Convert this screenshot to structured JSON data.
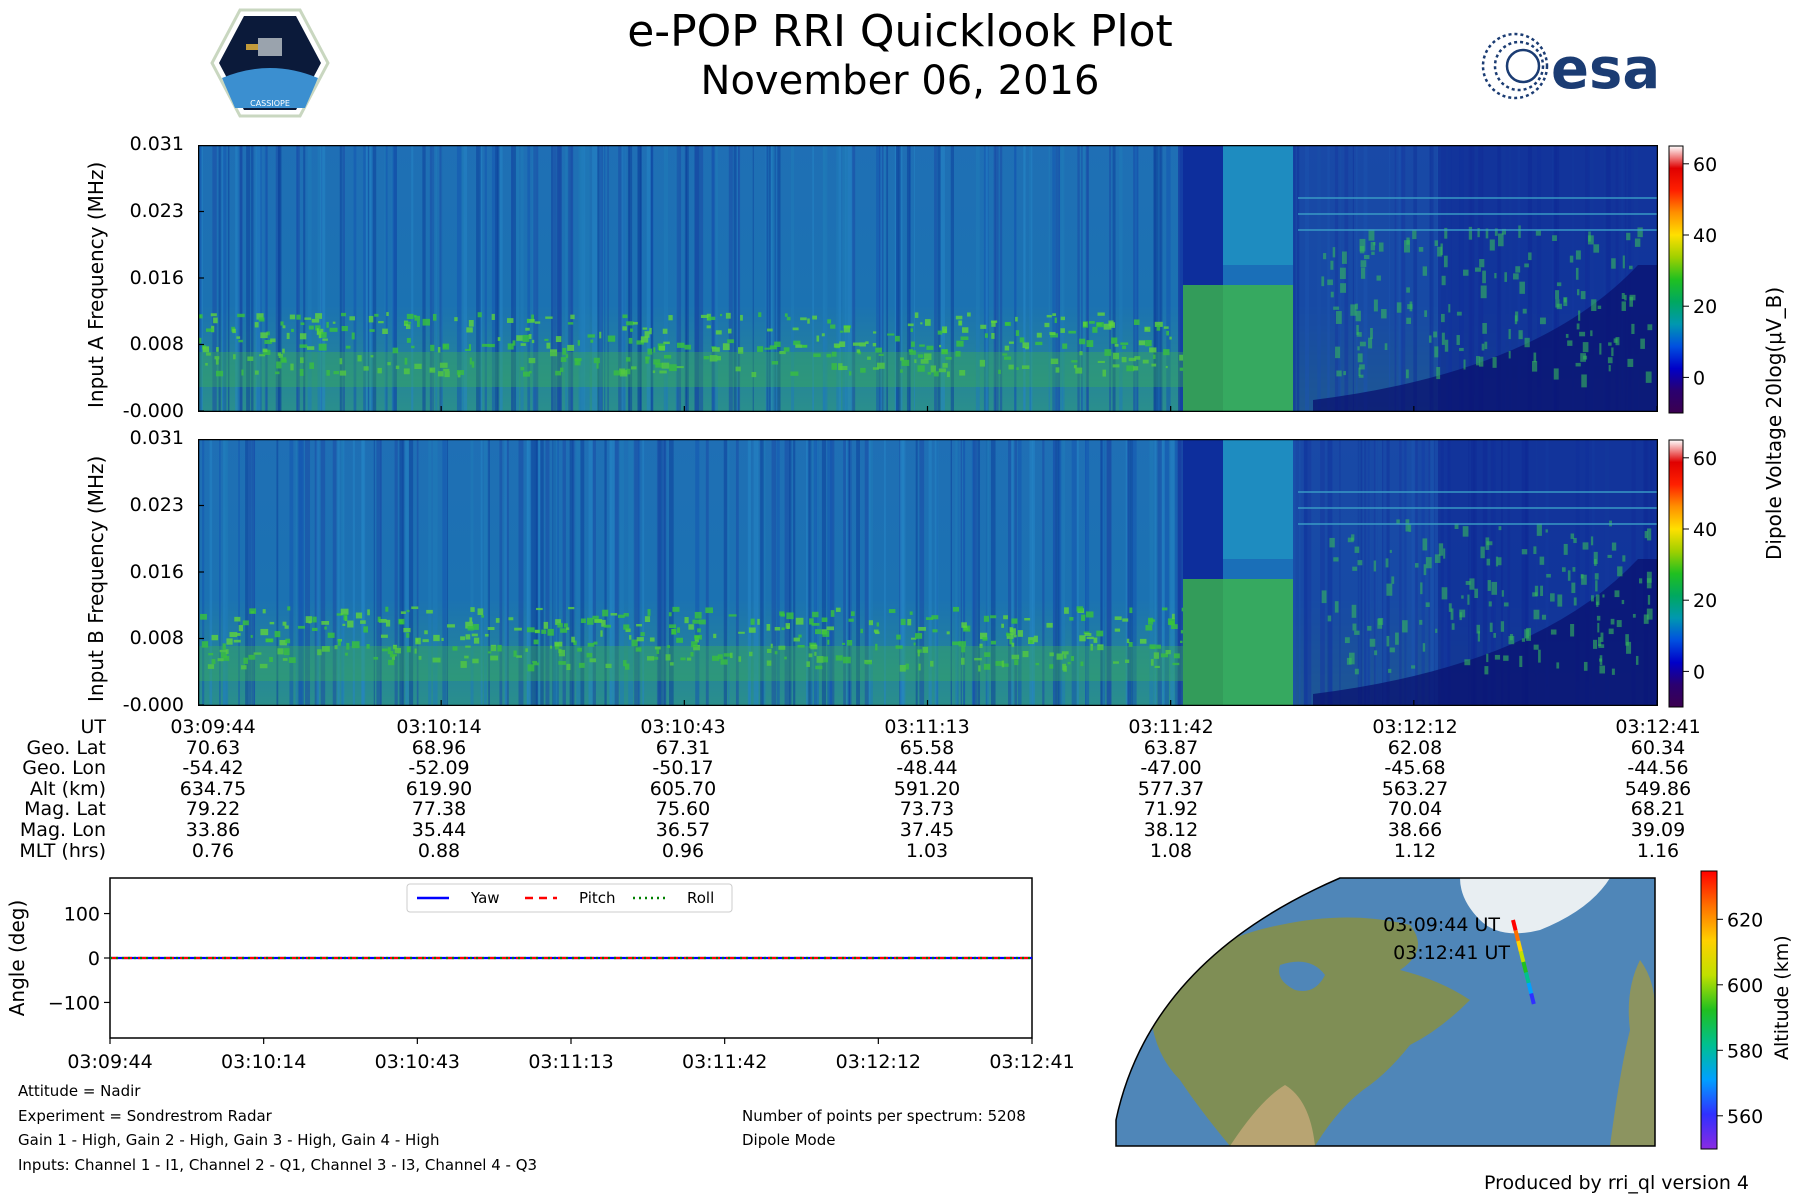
{
  "header": {
    "title": "e-POP RRI Quicklook Plot",
    "date": "November 06, 2016",
    "mission_logo_label": "CASSIOPE",
    "agency_logo_label": "esa"
  },
  "chart_data": [
    {
      "type": "heatmap",
      "name": "input-a-spectrogram",
      "ylabel": "Input A Frequency (MHz)",
      "y_ticks": [
        "0.031",
        "0.023",
        "0.016",
        "0.008",
        "-0.000"
      ],
      "ylim": [
        0.0,
        0.031
      ],
      "x_ticks": [
        "03:09:44",
        "03:10:14",
        "03:10:43",
        "03:11:13",
        "03:11:42",
        "03:12:12",
        "03:12:41"
      ],
      "colorbar": {
        "label": "Dipole Voltage 20log(μV_B)",
        "ticks": [
          "60",
          "40",
          "20",
          "0"
        ],
        "range": [
          -10,
          65
        ]
      }
    },
    {
      "type": "heatmap",
      "name": "input-b-spectrogram",
      "ylabel": "Input B Frequency (MHz)",
      "y_ticks": [
        "0.031",
        "0.023",
        "0.016",
        "0.008",
        "-0.000"
      ],
      "ylim": [
        0.0,
        0.031
      ],
      "x_ticks": [
        "03:09:44",
        "03:10:14",
        "03:10:43",
        "03:11:13",
        "03:11:42",
        "03:12:12",
        "03:12:41"
      ],
      "colorbar": {
        "label": "Dipole Voltage 20log(μV_B)",
        "ticks": [
          "60",
          "40",
          "20",
          "0"
        ],
        "range": [
          -10,
          65
        ]
      }
    },
    {
      "type": "line",
      "name": "attitude-plot",
      "ylabel": "Angle (deg)",
      "y_ticks": [
        "100",
        "0",
        "−100"
      ],
      "ylim": [
        -180,
        180
      ],
      "x_ticks": [
        "03:09:44",
        "03:10:14",
        "03:10:43",
        "03:11:13",
        "03:11:42",
        "03:12:12",
        "03:12:41"
      ],
      "series": [
        {
          "name": "Yaw",
          "color": "#0000ff",
          "values": [
            0,
            0,
            0,
            0,
            0,
            0,
            0
          ]
        },
        {
          "name": "Pitch",
          "color": "#ff0000",
          "values": [
            0,
            0,
            0,
            0,
            0,
            0,
            0
          ]
        },
        {
          "name": "Roll",
          "color": "#008000",
          "values": [
            0,
            0,
            0,
            0,
            0,
            0,
            0
          ]
        }
      ],
      "legend": "top-center"
    },
    {
      "type": "scatter",
      "name": "orbit-map",
      "start_label": "03:09:44 UT",
      "end_label": "03:12:41 UT",
      "colorbar": {
        "label": "Altitude (km)",
        "ticks": [
          "620",
          "600",
          "580",
          "560"
        ],
        "range": [
          549.86,
          634.75
        ]
      }
    }
  ],
  "ephemeris": {
    "labels": [
      "UT",
      "Geo. Lat",
      "Geo. Lon",
      "Alt (km)",
      "Mag. Lat",
      "Mag. Lon",
      "MLT (hrs)"
    ],
    "columns": [
      [
        "03:09:44",
        "70.63",
        "-54.42",
        "634.75",
        "79.22",
        "33.86",
        "0.76"
      ],
      [
        "03:10:14",
        "68.96",
        "-52.09",
        "619.90",
        "77.38",
        "35.44",
        "0.88"
      ],
      [
        "03:10:43",
        "67.31",
        "-50.17",
        "605.70",
        "75.60",
        "36.57",
        "0.96"
      ],
      [
        "03:11:13",
        "65.58",
        "-48.44",
        "591.20",
        "73.73",
        "37.45",
        "1.03"
      ],
      [
        "03:11:42",
        "63.87",
        "-47.00",
        "577.37",
        "71.92",
        "38.12",
        "1.08"
      ],
      [
        "03:12:12",
        "62.08",
        "-45.68",
        "563.27",
        "70.04",
        "38.66",
        "1.12"
      ],
      [
        "03:12:41",
        "60.34",
        "-44.56",
        "549.86",
        "68.21",
        "39.09",
        "1.16"
      ]
    ]
  },
  "notes": {
    "attitude": "Attitude = Nadir",
    "experiment": "Experiment = Sondrestrom Radar",
    "gains": "Gain 1 - High, Gain 2 - High, Gain 3 - High, Gain 4 - High",
    "inputs": "Inputs: Channel 1 - I1, Channel 2 - Q1, Channel 3 - I3, Channel 4 - Q3",
    "points": "Number of points per spectrum: 5208",
    "mode": "Dipole Mode",
    "produced_by": "Produced by rri_ql version 4"
  }
}
